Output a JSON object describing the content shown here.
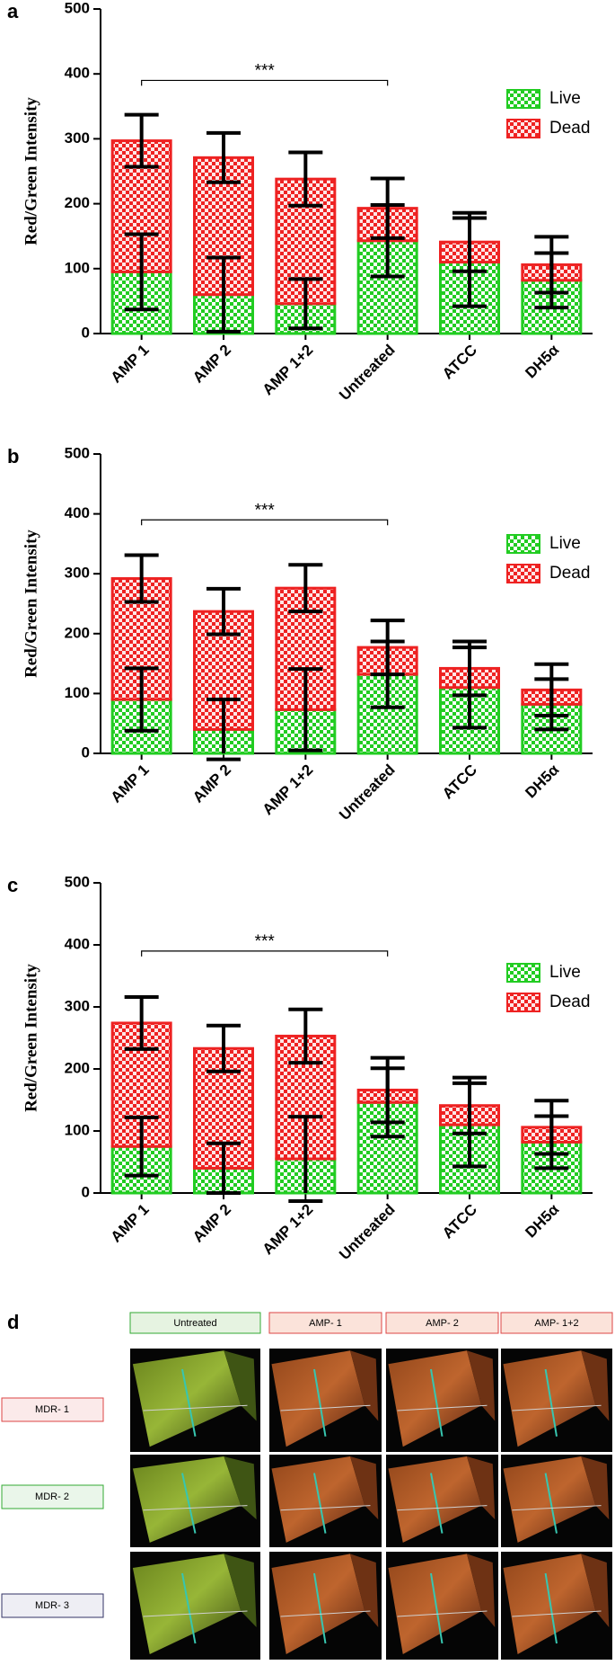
{
  "chart_data": [
    {
      "type": "stacked_bar",
      "label": "a",
      "ylabel": "Red/Green Intensity",
      "annotation": "***",
      "legend": "upper right",
      "categories": [
        "AMP 1",
        "AMP 2",
        "AMP 1+2",
        "Untreated",
        "ATCC",
        "DH5α"
      ],
      "series": [
        {
          "name": "Live",
          "color": "#22cc22",
          "values": [
            95,
            60,
            46,
            143,
            110,
            82
          ],
          "errors": [
            58,
            57,
            38,
            55,
            68,
            42
          ]
        },
        {
          "name": "Dead",
          "color": "#ee2222",
          "values": [
            202,
            211,
            192,
            50,
            31,
            24
          ],
          "errors": [
            40,
            38,
            41,
            46,
            45,
            43
          ]
        }
      ],
      "ylim": [
        0,
        500
      ],
      "yticks": [
        0,
        100,
        200,
        300,
        400,
        500
      ]
    },
    {
      "type": "stacked_bar",
      "label": "b",
      "ylabel": "Red/Green Intensity",
      "annotation": "***",
      "legend": "upper right",
      "categories": [
        "AMP 1",
        "AMP 2",
        "AMP 1+2",
        "Untreated",
        "ATCC",
        "DH5α"
      ],
      "series": [
        {
          "name": "Live",
          "color": "#22cc22",
          "values": [
            90,
            40,
            73,
            132,
            110,
            82
          ],
          "errors": [
            52,
            50,
            68,
            55,
            67,
            42
          ]
        },
        {
          "name": "Dead",
          "color": "#ee2222",
          "values": [
            202,
            197,
            203,
            45,
            32,
            24
          ],
          "errors": [
            39,
            38,
            39,
            45,
            45,
            43
          ]
        }
      ],
      "ylim": [
        0,
        500
      ],
      "yticks": [
        0,
        100,
        200,
        300,
        400,
        500
      ]
    },
    {
      "type": "stacked_bar",
      "label": "c",
      "ylabel": "Red/Green Intensity",
      "annotation": "***",
      "legend": "upper right",
      "categories": [
        "AMP 1",
        "AMP 2",
        "AMP 1+2",
        "Untreated",
        "ATCC",
        "DH5α"
      ],
      "series": [
        {
          "name": "Live",
          "color": "#22cc22",
          "values": [
            75,
            40,
            55,
            146,
            110,
            82
          ],
          "errors": [
            47,
            40,
            68,
            55,
            67,
            42
          ]
        },
        {
          "name": "Dead",
          "color": "#ee2222",
          "values": [
            199,
            193,
            198,
            20,
            31,
            24
          ],
          "errors": [
            42,
            37,
            43,
            52,
            45,
            43
          ]
        }
      ],
      "ylim": [
        0,
        500
      ],
      "yticks": [
        0,
        100,
        200,
        300,
        400,
        500
      ]
    }
  ],
  "panel_d": {
    "label": "d",
    "columns": [
      "Untreated",
      "AMP- 1",
      "AMP- 2",
      "AMP- 1+2"
    ],
    "rows": [
      "MDR- 1",
      "MDR- 2",
      "MDR- 3"
    ]
  }
}
